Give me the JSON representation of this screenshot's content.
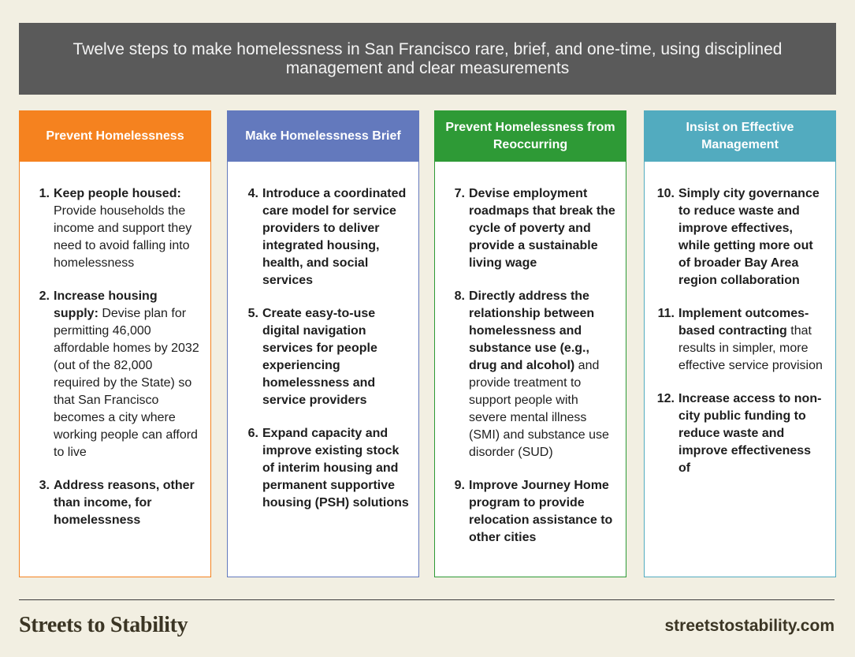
{
  "banner": {
    "text": "Twelve steps to make homelessness in San Francisco rare, brief, and one-time, using disciplined management and clear measurements"
  },
  "columns": [
    {
      "title": "Prevent Homelessness",
      "color": "#f5821f",
      "items": [
        {
          "num": "1.",
          "bold": "Keep people housed:",
          "rest": " Provide households the income and support they need to avoid falling into homelessness"
        },
        {
          "num": "2.",
          "bold": "Increase housing supply:",
          "rest": " Devise plan for permitting 46,000 affordable homes by 2032 (out of the 82,000 required by the State) so that San Francisco becomes a city where working people can afford to live"
        },
        {
          "num": "3.",
          "bold": "Address reasons, other than income, for homelessness",
          "rest": ""
        }
      ]
    },
    {
      "title": "Make Homelessness Brief",
      "color": "#6379bd",
      "items": [
        {
          "num": "4.",
          "bold": "Introduce a coordinated care model for service providers to deliver integrated housing, health, and social services",
          "rest": ""
        },
        {
          "num": "5.",
          "bold": "Create easy-to-use digital navigation services for people experiencing homelessness and service providers",
          "rest": ""
        },
        {
          "num": "6.",
          "bold": "Expand capacity and improve existing stock of interim housing and permanent supportive housing (PSH) solutions",
          "rest": ""
        }
      ]
    },
    {
      "title": "Prevent Homelessness from Reoccurring",
      "color": "#2e9a36",
      "items": [
        {
          "num": "7.",
          "bold": "Devise employment roadmaps that break the cycle of poverty and provide a sustainable living wage",
          "rest": ""
        },
        {
          "num": "8.",
          "bold": "Directly address the relationship between homelessness and substance use (e.g., drug and alcohol)",
          "rest": " and provide treatment to support people with severe mental illness (SMI) and substance use disorder (SUD)"
        },
        {
          "num": "9.",
          "bold": "Improve Journey Home program to provide relocation assistance to other cities",
          "rest": ""
        }
      ]
    },
    {
      "title": "Insist on Effective Management",
      "color": "#52abbf",
      "items": [
        {
          "num": "10.",
          "bold": "Simply city governance to reduce waste and improve effectives, while getting more out of broader Bay Area region collaboration",
          "rest": ""
        },
        {
          "num": "11.",
          "bold": "Implement outcomes-based contracting",
          "rest": " that results in simpler, more effective service provision"
        },
        {
          "num": "12.",
          "bold": "Increase access to non-city public funding to reduce waste and improve effectiveness of",
          "rest": ""
        }
      ]
    }
  ],
  "footer": {
    "brand": "Streets to Stability",
    "url": "streetstostability.com"
  }
}
